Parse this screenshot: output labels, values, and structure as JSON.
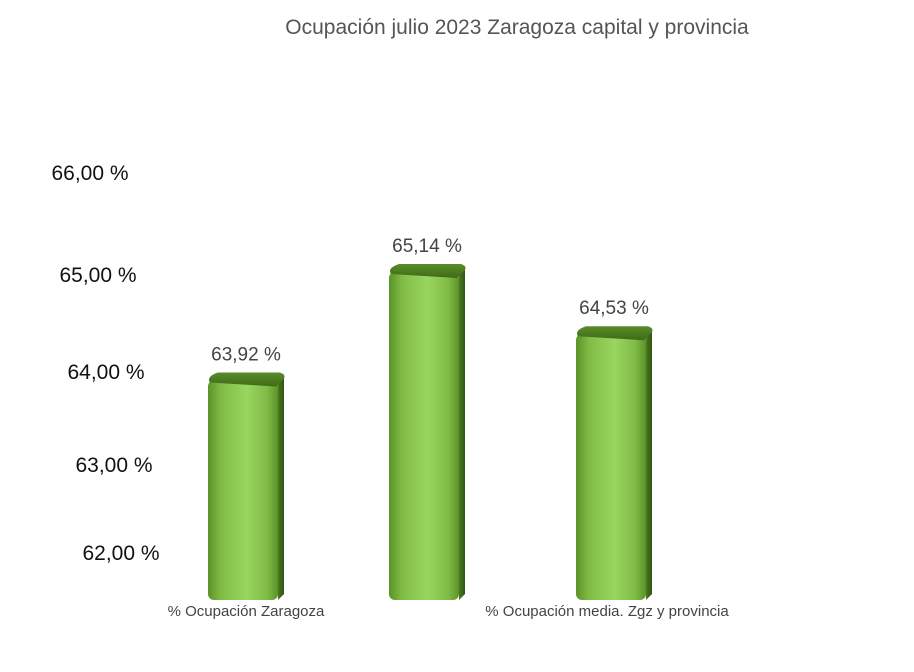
{
  "chart_data": {
    "type": "bar",
    "title": "Ocupación julio 2023 Zaragoza capital y provincia",
    "xlabel": "",
    "ylabel": "",
    "ylim": [
      62,
      66
    ],
    "yticks": [
      "66,00 %",
      "65,00 %",
      "64,00 %",
      "63,00 %",
      "62,00 %"
    ],
    "categories": [
      "% Ocupación Zaragoza",
      "",
      "% Ocupación media. Zgz y provincia"
    ],
    "values": [
      63.92,
      65.14,
      64.53
    ],
    "data_labels": [
      "63,92 %",
      "65,14 %",
      "64,53 %"
    ],
    "bar_color": "#8dc553",
    "bar_dark": "#4e7f22",
    "grid": false,
    "legend": "none"
  }
}
